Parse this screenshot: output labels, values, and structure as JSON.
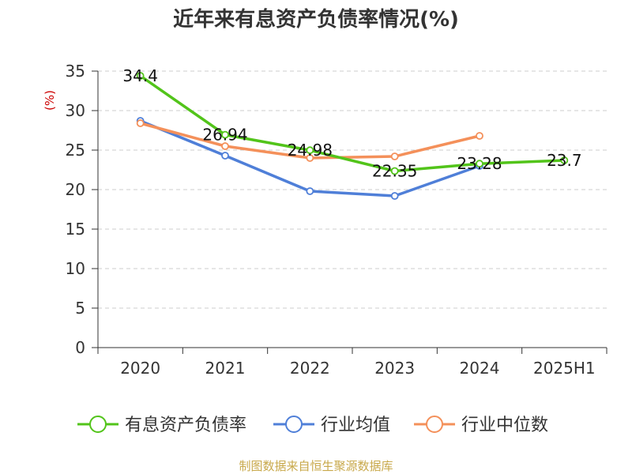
{
  "chart_data": {
    "type": "line",
    "title": "近年来有息资产负债率情况(%)",
    "ylabel": "(%)",
    "ylim": [
      0,
      35
    ],
    "yticks": [
      0,
      5,
      10,
      15,
      20,
      25,
      30,
      35
    ],
    "grid": true,
    "legend_position": "bottom",
    "categories": [
      "2020",
      "2021",
      "2022",
      "2023",
      "2024",
      "2025H1"
    ],
    "series": [
      {
        "name": "有息资产负债率",
        "color": "#52c41a",
        "values": [
          34.4,
          26.94,
          24.98,
          22.35,
          23.28,
          23.7
        ],
        "labels": [
          "34.4",
          "26.94",
          "24.98",
          "22.35",
          "23.28",
          "23.7"
        ]
      },
      {
        "name": "行业均值",
        "color": "#4f7fd8",
        "values": [
          28.7,
          24.3,
          19.8,
          19.2,
          23.0,
          null
        ]
      },
      {
        "name": "行业中位数",
        "color": "#f4905a",
        "values": [
          28.4,
          25.5,
          24.0,
          24.2,
          26.8,
          null
        ]
      }
    ]
  },
  "footer": {
    "source": "制图数据来自恒生聚源数据库"
  },
  "colors": {
    "axis": "#333333",
    "grid": "#cccccc",
    "ylabel": "#cc0000",
    "source": "#c8a84a"
  }
}
